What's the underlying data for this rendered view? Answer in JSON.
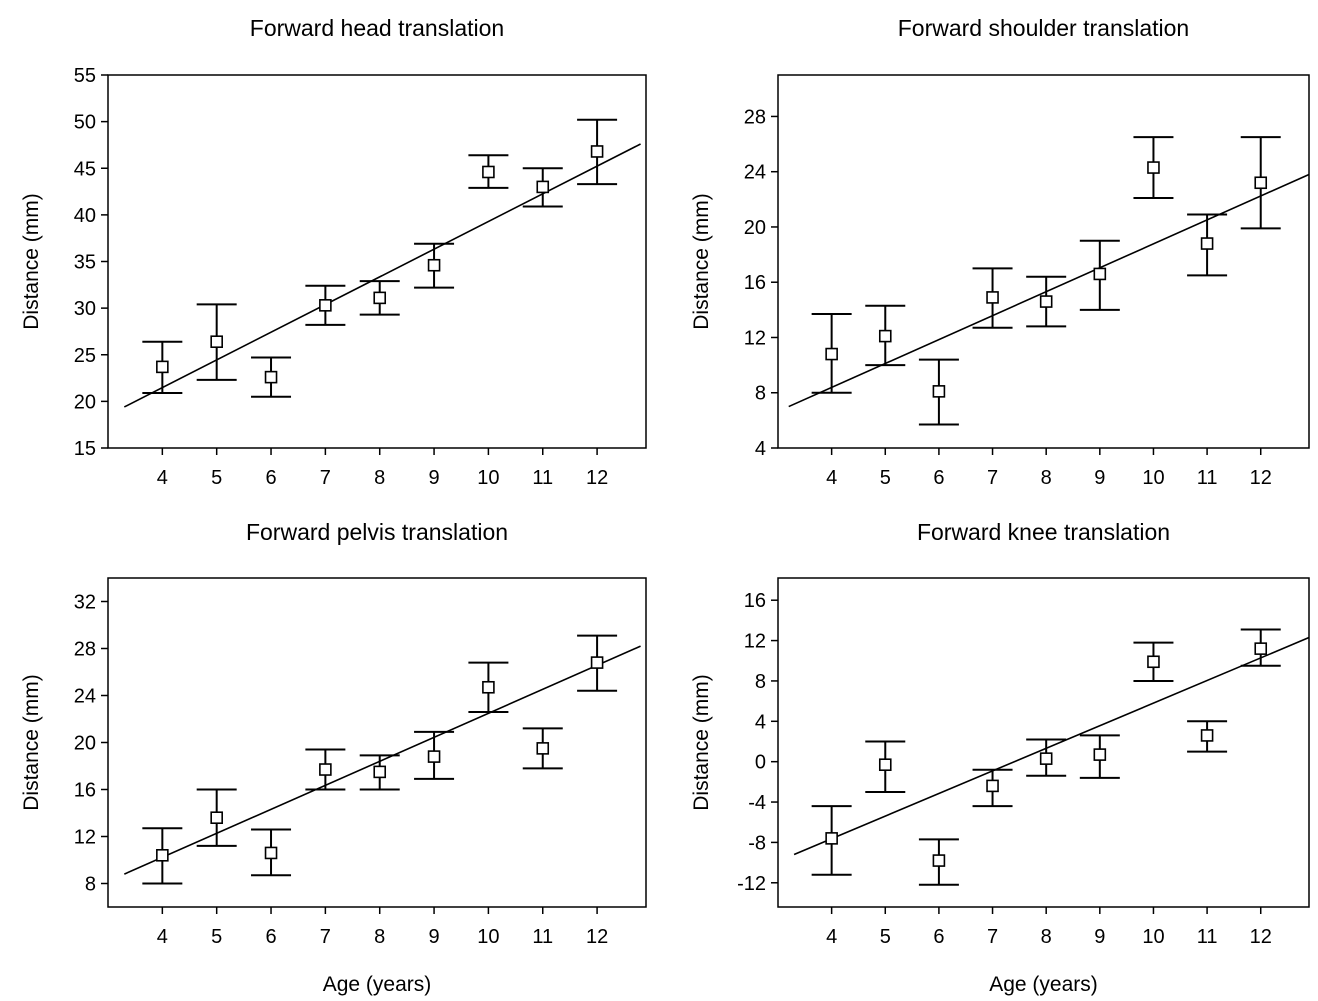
{
  "chart_data": [
    {
      "type": "scatter",
      "title": "Forward head translation",
      "xlabel": "",
      "ylabel": "Distance (mm)",
      "xlim": [
        3.0,
        12.9
      ],
      "ylim": [
        15,
        55
      ],
      "yticks": [
        15,
        20,
        25,
        30,
        35,
        40,
        45,
        50,
        55
      ],
      "xticks": [
        4,
        5,
        6,
        7,
        8,
        9,
        10,
        11,
        12
      ],
      "grid": false,
      "x": [
        4,
        5,
        6,
        7,
        8,
        9,
        10,
        11,
        12
      ],
      "y": [
        23.7,
        26.4,
        22.6,
        30.3,
        31.1,
        34.6,
        44.6,
        43.0,
        46.8
      ],
      "err_low": [
        20.9,
        22.3,
        20.5,
        28.2,
        29.3,
        32.2,
        42.9,
        40.9,
        43.3
      ],
      "err_high": [
        26.4,
        30.4,
        24.7,
        32.4,
        32.9,
        36.9,
        46.4,
        45.0,
        50.2
      ],
      "fit_line": {
        "x": [
          3.3,
          12.8
        ],
        "y": [
          19.4,
          47.6
        ]
      }
    },
    {
      "type": "scatter",
      "title": "Forward shoulder translation",
      "xlabel": "",
      "ylabel": "Distance (mm)",
      "xlim": [
        3.0,
        12.9
      ],
      "ylim": [
        4,
        31
      ],
      "yticks": [
        4,
        8,
        12,
        16,
        20,
        24,
        28
      ],
      "xticks": [
        4,
        5,
        6,
        7,
        8,
        9,
        10,
        11,
        12
      ],
      "grid": false,
      "x": [
        4,
        5,
        6,
        7,
        8,
        9,
        10,
        11,
        12
      ],
      "y": [
        10.8,
        12.1,
        8.1,
        14.9,
        14.6,
        16.6,
        24.3,
        18.8,
        23.2
      ],
      "err_low": [
        8.0,
        10.0,
        5.7,
        12.7,
        12.8,
        14.0,
        22.1,
        16.5,
        19.9
      ],
      "err_high": [
        13.7,
        14.3,
        10.4,
        17.0,
        16.4,
        19.0,
        26.5,
        20.9,
        26.5
      ],
      "fit_line": {
        "x": [
          3.2,
          12.9
        ],
        "y": [
          7.0,
          23.8
        ]
      }
    },
    {
      "type": "scatter",
      "title": "Forward pelvis translation",
      "xlabel": "Age (years)",
      "ylabel": "Distance (mm)",
      "xlim": [
        3.0,
        12.9
      ],
      "ylim": [
        6,
        34
      ],
      "yticks": [
        8,
        12,
        16,
        20,
        24,
        28,
        32
      ],
      "xticks": [
        4,
        5,
        6,
        7,
        8,
        9,
        10,
        11,
        12
      ],
      "grid": false,
      "x": [
        4,
        5,
        6,
        7,
        8,
        9,
        10,
        11,
        12
      ],
      "y": [
        10.4,
        13.6,
        10.6,
        17.7,
        17.5,
        18.8,
        24.7,
        19.5,
        26.8
      ],
      "err_low": [
        8.0,
        11.2,
        8.7,
        16.0,
        16.0,
        16.9,
        22.6,
        17.8,
        24.4
      ],
      "err_high": [
        12.7,
        16.0,
        12.6,
        19.4,
        18.9,
        20.9,
        26.8,
        21.2,
        29.1
      ],
      "fit_line": {
        "x": [
          3.3,
          12.8
        ],
        "y": [
          8.8,
          28.2
        ]
      }
    },
    {
      "type": "scatter",
      "title": "Forward knee translation",
      "xlabel": "Age (years)",
      "ylabel": "Distance (mm)",
      "xlim": [
        3.0,
        12.9
      ],
      "ylim": [
        -14.4,
        18.2
      ],
      "yticks": [
        -12,
        -8,
        -4,
        0,
        4,
        8,
        12,
        16
      ],
      "xticks": [
        4,
        5,
        6,
        7,
        8,
        9,
        10,
        11,
        12
      ],
      "grid": false,
      "x": [
        4,
        5,
        6,
        7,
        8,
        9,
        10,
        11,
        12
      ],
      "y": [
        -7.6,
        -0.3,
        -9.8,
        -2.4,
        0.3,
        0.7,
        9.9,
        2.6,
        11.2
      ],
      "err_low": [
        -11.2,
        -3.0,
        -12.2,
        -4.4,
        -1.4,
        -1.6,
        8.0,
        1.0,
        9.5
      ],
      "err_high": [
        -4.4,
        2.0,
        -7.7,
        -0.8,
        2.2,
        2.6,
        11.8,
        4.0,
        13.1
      ],
      "fit_line": {
        "x": [
          3.3,
          12.9
        ],
        "y": [
          -9.2,
          12.3
        ]
      }
    }
  ]
}
